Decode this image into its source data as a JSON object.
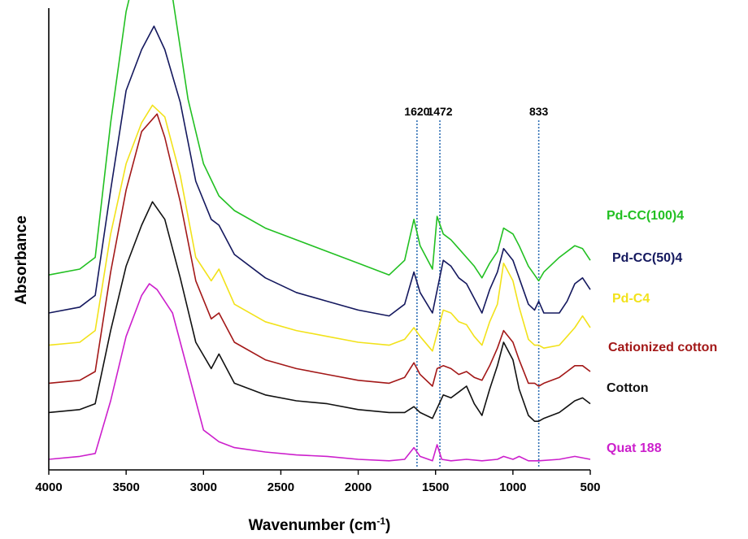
{
  "chart_data": {
    "type": "line",
    "xlabel": "Wavenumber (cm",
    "xlabel_sup": "-1",
    "xlabel_close": ")",
    "ylabel": "Absorbance",
    "xlim": [
      4000,
      500
    ],
    "x_reversed": true,
    "x_ticks": [
      4000,
      3500,
      3000,
      2500,
      2000,
      1500,
      1000,
      500
    ],
    "y_scale": "arbitrary, vertically offset spectra",
    "grid": false,
    "annotations": [
      {
        "label": "1620",
        "x": 1620
      },
      {
        "label": "1472",
        "x": 1472
      },
      {
        "label": "833",
        "x": 833
      }
    ],
    "series": [
      {
        "name": "Pd-CC(100)4",
        "color": "#22c022",
        "baseline": 0.63,
        "points": [
          [
            4000,
            0.0
          ],
          [
            3800,
            0.02
          ],
          [
            3700,
            0.06
          ],
          [
            3600,
            0.52
          ],
          [
            3500,
            0.9
          ],
          [
            3400,
            1.12
          ],
          [
            3350,
            1.2
          ],
          [
            3300,
            1.15
          ],
          [
            3200,
            0.95
          ],
          [
            3100,
            0.6
          ],
          [
            3000,
            0.38
          ],
          [
            2900,
            0.27
          ],
          [
            2800,
            0.22
          ],
          [
            2600,
            0.16
          ],
          [
            2400,
            0.12
          ],
          [
            2200,
            0.08
          ],
          [
            2000,
            0.04
          ],
          [
            1800,
            0.0
          ],
          [
            1700,
            0.05
          ],
          [
            1640,
            0.19
          ],
          [
            1600,
            0.1
          ],
          [
            1520,
            0.02
          ],
          [
            1490,
            0.2
          ],
          [
            1450,
            0.14
          ],
          [
            1400,
            0.12
          ],
          [
            1350,
            0.09
          ],
          [
            1300,
            0.06
          ],
          [
            1250,
            0.03
          ],
          [
            1200,
            -0.01
          ],
          [
            1150,
            0.04
          ],
          [
            1100,
            0.08
          ],
          [
            1060,
            0.16
          ],
          [
            1000,
            0.14
          ],
          [
            960,
            0.1
          ],
          [
            900,
            0.03
          ],
          [
            860,
            0.0
          ],
          [
            833,
            -0.02
          ],
          [
            800,
            0.01
          ],
          [
            700,
            0.06
          ],
          [
            600,
            0.1
          ],
          [
            550,
            0.09
          ],
          [
            500,
            0.05
          ]
        ]
      },
      {
        "name": "Pd-CC(50)4",
        "color": "#14185e",
        "baseline": 0.5,
        "points": [
          [
            4000,
            0.0
          ],
          [
            3800,
            0.02
          ],
          [
            3700,
            0.06
          ],
          [
            3600,
            0.42
          ],
          [
            3500,
            0.76
          ],
          [
            3400,
            0.9
          ],
          [
            3320,
            0.98
          ],
          [
            3250,
            0.9
          ],
          [
            3150,
            0.72
          ],
          [
            3050,
            0.45
          ],
          [
            2950,
            0.32
          ],
          [
            2900,
            0.3
          ],
          [
            2800,
            0.2
          ],
          [
            2600,
            0.12
          ],
          [
            2400,
            0.07
          ],
          [
            2200,
            0.04
          ],
          [
            2000,
            0.01
          ],
          [
            1800,
            -0.01
          ],
          [
            1700,
            0.03
          ],
          [
            1640,
            0.14
          ],
          [
            1600,
            0.07
          ],
          [
            1520,
            0.0
          ],
          [
            1450,
            0.18
          ],
          [
            1400,
            0.16
          ],
          [
            1350,
            0.12
          ],
          [
            1300,
            0.1
          ],
          [
            1250,
            0.05
          ],
          [
            1200,
            0.0
          ],
          [
            1150,
            0.08
          ],
          [
            1100,
            0.14
          ],
          [
            1060,
            0.22
          ],
          [
            1000,
            0.18
          ],
          [
            960,
            0.12
          ],
          [
            900,
            0.03
          ],
          [
            860,
            0.01
          ],
          [
            833,
            0.04
          ],
          [
            800,
            0.0
          ],
          [
            700,
            0.0
          ],
          [
            650,
            0.04
          ],
          [
            600,
            0.1
          ],
          [
            550,
            0.12
          ],
          [
            500,
            0.08
          ]
        ]
      },
      {
        "name": "Pd-C4",
        "color": "#f2e21a",
        "baseline": 0.39,
        "points": [
          [
            4000,
            0.0
          ],
          [
            3800,
            0.01
          ],
          [
            3700,
            0.05
          ],
          [
            3600,
            0.38
          ],
          [
            3500,
            0.62
          ],
          [
            3400,
            0.76
          ],
          [
            3330,
            0.82
          ],
          [
            3250,
            0.78
          ],
          [
            3150,
            0.58
          ],
          [
            3050,
            0.3
          ],
          [
            2950,
            0.22
          ],
          [
            2900,
            0.26
          ],
          [
            2800,
            0.14
          ],
          [
            2600,
            0.08
          ],
          [
            2400,
            0.05
          ],
          [
            2200,
            0.03
          ],
          [
            2000,
            0.01
          ],
          [
            1800,
            0.0
          ],
          [
            1700,
            0.02
          ],
          [
            1640,
            0.06
          ],
          [
            1600,
            0.03
          ],
          [
            1520,
            -0.02
          ],
          [
            1450,
            0.12
          ],
          [
            1400,
            0.11
          ],
          [
            1350,
            0.08
          ],
          [
            1300,
            0.07
          ],
          [
            1250,
            0.03
          ],
          [
            1200,
            0.0
          ],
          [
            1150,
            0.08
          ],
          [
            1100,
            0.14
          ],
          [
            1060,
            0.28
          ],
          [
            1000,
            0.22
          ],
          [
            960,
            0.13
          ],
          [
            900,
            0.02
          ],
          [
            860,
            0.0
          ],
          [
            833,
            0.0
          ],
          [
            800,
            -0.01
          ],
          [
            700,
            0.0
          ],
          [
            650,
            0.03
          ],
          [
            600,
            0.06
          ],
          [
            550,
            0.1
          ],
          [
            500,
            0.06
          ]
        ]
      },
      {
        "name": "Cationized cotton",
        "color": "#a31818",
        "baseline": 0.26,
        "points": [
          [
            4000,
            0.0
          ],
          [
            3800,
            0.01
          ],
          [
            3700,
            0.04
          ],
          [
            3600,
            0.38
          ],
          [
            3500,
            0.66
          ],
          [
            3400,
            0.86
          ],
          [
            3300,
            0.92
          ],
          [
            3250,
            0.84
          ],
          [
            3150,
            0.62
          ],
          [
            3050,
            0.35
          ],
          [
            2950,
            0.22
          ],
          [
            2900,
            0.24
          ],
          [
            2800,
            0.14
          ],
          [
            2600,
            0.08
          ],
          [
            2400,
            0.05
          ],
          [
            2200,
            0.03
          ],
          [
            2000,
            0.01
          ],
          [
            1800,
            0.0
          ],
          [
            1700,
            0.02
          ],
          [
            1640,
            0.07
          ],
          [
            1600,
            0.03
          ],
          [
            1520,
            -0.01
          ],
          [
            1490,
            0.05
          ],
          [
            1450,
            0.06
          ],
          [
            1400,
            0.05
          ],
          [
            1350,
            0.03
          ],
          [
            1300,
            0.04
          ],
          [
            1250,
            0.02
          ],
          [
            1200,
            0.01
          ],
          [
            1150,
            0.06
          ],
          [
            1100,
            0.12
          ],
          [
            1060,
            0.18
          ],
          [
            1000,
            0.14
          ],
          [
            960,
            0.08
          ],
          [
            900,
            0.0
          ],
          [
            860,
            0.0
          ],
          [
            833,
            -0.01
          ],
          [
            800,
            0.0
          ],
          [
            700,
            0.02
          ],
          [
            650,
            0.04
          ],
          [
            600,
            0.06
          ],
          [
            550,
            0.06
          ],
          [
            500,
            0.04
          ]
        ]
      },
      {
        "name": "Cotton",
        "color": "#111111",
        "baseline": 0.16,
        "points": [
          [
            4000,
            0.0
          ],
          [
            3800,
            0.01
          ],
          [
            3700,
            0.03
          ],
          [
            3600,
            0.28
          ],
          [
            3500,
            0.5
          ],
          [
            3400,
            0.64
          ],
          [
            3330,
            0.72
          ],
          [
            3250,
            0.66
          ],
          [
            3150,
            0.46
          ],
          [
            3050,
            0.24
          ],
          [
            2950,
            0.15
          ],
          [
            2900,
            0.2
          ],
          [
            2800,
            0.1
          ],
          [
            2600,
            0.06
          ],
          [
            2400,
            0.04
          ],
          [
            2200,
            0.03
          ],
          [
            2000,
            0.01
          ],
          [
            1800,
            0.0
          ],
          [
            1700,
            0.0
          ],
          [
            1640,
            0.02
          ],
          [
            1600,
            0.0
          ],
          [
            1520,
            -0.02
          ],
          [
            1450,
            0.06
          ],
          [
            1400,
            0.05
          ],
          [
            1350,
            0.07
          ],
          [
            1300,
            0.09
          ],
          [
            1250,
            0.03
          ],
          [
            1200,
            -0.01
          ],
          [
            1150,
            0.08
          ],
          [
            1100,
            0.16
          ],
          [
            1060,
            0.24
          ],
          [
            1000,
            0.18
          ],
          [
            960,
            0.08
          ],
          [
            900,
            -0.01
          ],
          [
            860,
            -0.03
          ],
          [
            833,
            -0.03
          ],
          [
            800,
            -0.02
          ],
          [
            700,
            0.0
          ],
          [
            650,
            0.02
          ],
          [
            600,
            0.04
          ],
          [
            550,
            0.05
          ],
          [
            500,
            0.03
          ]
        ]
      },
      {
        "name": "Quat 188",
        "color": "#cc1fcc",
        "baseline": 0.0,
        "points": [
          [
            4000,
            0.0
          ],
          [
            3800,
            0.01
          ],
          [
            3700,
            0.02
          ],
          [
            3600,
            0.2
          ],
          [
            3500,
            0.42
          ],
          [
            3400,
            0.56
          ],
          [
            3350,
            0.6
          ],
          [
            3300,
            0.58
          ],
          [
            3200,
            0.5
          ],
          [
            3100,
            0.3
          ],
          [
            3000,
            0.1
          ],
          [
            2900,
            0.06
          ],
          [
            2800,
            0.04
          ],
          [
            2600,
            0.025
          ],
          [
            2400,
            0.015
          ],
          [
            2200,
            0.01
          ],
          [
            2000,
            0.0
          ],
          [
            1800,
            -0.005
          ],
          [
            1700,
            0.0
          ],
          [
            1640,
            0.04
          ],
          [
            1600,
            0.01
          ],
          [
            1520,
            -0.005
          ],
          [
            1490,
            0.05
          ],
          [
            1460,
            0.0
          ],
          [
            1400,
            -0.005
          ],
          [
            1300,
            0.0
          ],
          [
            1200,
            -0.005
          ],
          [
            1100,
            0.0
          ],
          [
            1060,
            0.01
          ],
          [
            1000,
            0.0
          ],
          [
            960,
            0.01
          ],
          [
            900,
            -0.005
          ],
          [
            833,
            -0.005
          ],
          [
            700,
            0.0
          ],
          [
            600,
            0.01
          ],
          [
            500,
            0.0
          ]
        ]
      }
    ]
  }
}
